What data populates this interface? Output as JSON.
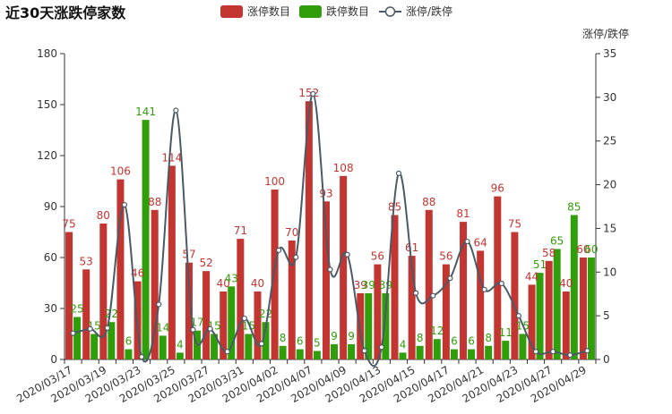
{
  "chart_data": {
    "type": "bar",
    "title": "近30天涨跌停家数",
    "categories": [
      "2020/03/17",
      "2020/03/18",
      "2020/03/19",
      "2020/03/20",
      "2020/03/23",
      "2020/03/24",
      "2020/03/25",
      "2020/03/26",
      "2020/03/27",
      "2020/03/30",
      "2020/03/31",
      "2020/04/01",
      "2020/04/02",
      "2020/04/03",
      "2020/04/07",
      "2020/04/08",
      "2020/04/09",
      "2020/04/10",
      "2020/04/13",
      "2020/04/14",
      "2020/04/15",
      "2020/04/16",
      "2020/04/17",
      "2020/04/20",
      "2020/04/21",
      "2020/04/22",
      "2020/04/23",
      "2020/04/24",
      "2020/04/27",
      "2020/04/28",
      "2020/04/29"
    ],
    "x_tick_labels": [
      "2020/03/17",
      "2020/03/19",
      "2020/03/23",
      "2020/03/25",
      "2020/03/27",
      "2020/03/31",
      "2020/04/02",
      "2020/04/07",
      "2020/04/09",
      "2020/04/13",
      "2020/04/15",
      "2020/04/17",
      "2020/04/21",
      "2020/04/23",
      "2020/04/27",
      "2020/04/29"
    ],
    "series": [
      {
        "name": "涨停数目",
        "type": "bar",
        "color": "#c23531",
        "axis": "left",
        "values": [
          75,
          53,
          80,
          106,
          46,
          88,
          114,
          57,
          52,
          40,
          71,
          40,
          100,
          70,
          152,
          93,
          108,
          39,
          56,
          85,
          61,
          88,
          56,
          81,
          64,
          96,
          75,
          44,
          58,
          40,
          60
        ]
      },
      {
        "name": "跌停数目",
        "type": "bar",
        "color": "#2f9e0a",
        "axis": "left",
        "values": [
          25,
          15,
          22,
          6,
          141,
          14,
          4,
          17,
          15,
          43,
          15,
          22,
          8,
          6,
          5,
          9,
          9,
          39,
          39,
          4,
          8,
          12,
          6,
          6,
          8,
          11,
          15,
          51,
          65,
          85,
          60
        ]
      },
      {
        "name": "涨停/跌停",
        "type": "line",
        "color": "#4a5a66",
        "axis": "right",
        "values": [
          3,
          3.5,
          3.6,
          17.7,
          0.3,
          6.3,
          28.5,
          3.4,
          3.5,
          0.9,
          4.7,
          1.8,
          12.5,
          11.7,
          30.4,
          10.3,
          12,
          1,
          1.4,
          21.3,
          7.6,
          7.3,
          9.3,
          13.5,
          8,
          8.7,
          5,
          0.9,
          0.9,
          0.5,
          1
        ]
      }
    ],
    "ylim_left": [
      0,
      180
    ],
    "yticks_left": [
      0,
      30,
      60,
      90,
      120,
      150,
      180
    ],
    "ylim_right": [
      0,
      35
    ],
    "yticks_right": [
      0,
      5,
      10,
      15,
      20,
      25,
      30,
      35
    ],
    "ylabel_right": "涨停/跌停",
    "legend_position": "top-center",
    "grid": false
  }
}
